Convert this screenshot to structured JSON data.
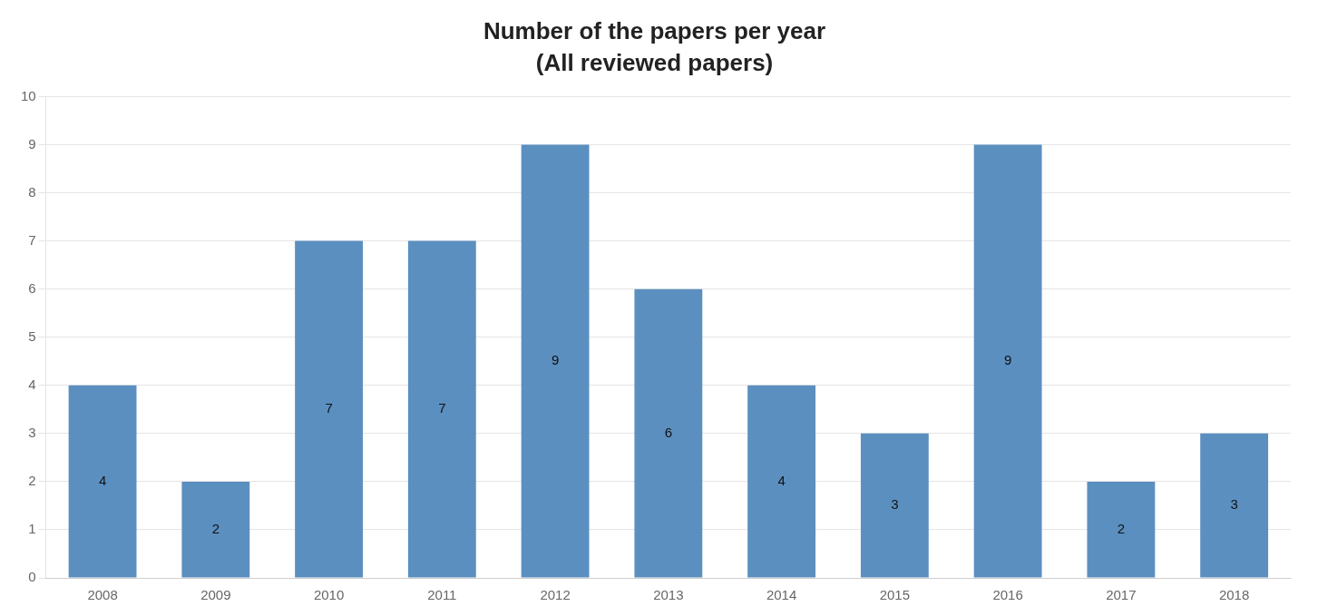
{
  "chart_data": {
    "type": "bar",
    "title": "Number of the papers per year",
    "subtitle": "(All reviewed papers)",
    "categories": [
      "2008",
      "2009",
      "2010",
      "2011",
      "2012",
      "2013",
      "2014",
      "2015",
      "2016",
      "2017",
      "2018"
    ],
    "values": [
      4,
      2,
      7,
      7,
      9,
      6,
      4,
      3,
      9,
      2,
      3
    ],
    "color": "#5B8FC0",
    "ylim": [
      0,
      10
    ],
    "yticks": [
      0,
      1,
      2,
      3,
      4,
      5,
      6,
      7,
      8,
      9,
      10
    ],
    "grid": true,
    "data_labels": true
  }
}
